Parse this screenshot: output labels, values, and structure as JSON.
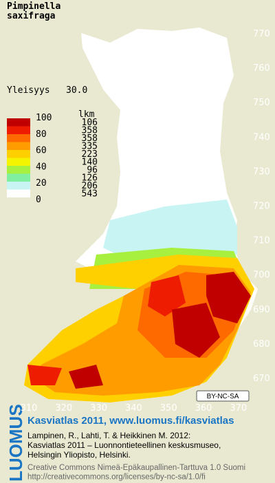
{
  "title": [
    "Pimpinella",
    "saxifraga"
  ],
  "frequency": {
    "label": "Yleisyys",
    "value": "30.0"
  },
  "legend": {
    "count_header": "lkm",
    "scale_labels": [
      "100",
      "80",
      "60",
      "40",
      "20",
      "0"
    ],
    "classes": [
      {
        "color": "#c00000",
        "count": "106"
      },
      {
        "color": "#ee1c00",
        "count": "358"
      },
      {
        "color": "#ff6a00",
        "count": "358"
      },
      {
        "color": "#ff9c00",
        "count": "335"
      },
      {
        "color": "#ffd000",
        "count": "223"
      },
      {
        "color": "#f4f400",
        "count": "140"
      },
      {
        "color": "#a8f040",
        "count": "96"
      },
      {
        "color": "#80f0a0",
        "count": "126"
      },
      {
        "color": "#c8f4f4",
        "count": "206"
      },
      {
        "color": "#ffffff",
        "count": "543"
      }
    ]
  },
  "axis": {
    "y_labels": [
      "770",
      "760",
      "750",
      "740",
      "730",
      "720",
      "710",
      "700",
      "690",
      "680",
      "670"
    ],
    "x_labels": [
      "310",
      "320",
      "330",
      "340",
      "350",
      "360",
      "370"
    ]
  },
  "license_badge": "BY-NC-SA",
  "footer": {
    "brand": "LUOMUS",
    "link": "Kasviatlas 2011, www.luomus.fi/kasviatlas",
    "citation": [
      "Lampinen, R., Lahti, T. & Heikkinen M. 2012:",
      "Kasviatlas 2011 – Luonnontieteellinen keskusmuseo,",
      "Helsingin Yliopisto, Helsinki."
    ],
    "license": [
      "Creative Commons Nimeä-Epäkaupallinen-Tarttuva 1.0 Suomi",
      "http://creativecommons.org/licenses/by-nc-sa/1.0/fi"
    ]
  }
}
